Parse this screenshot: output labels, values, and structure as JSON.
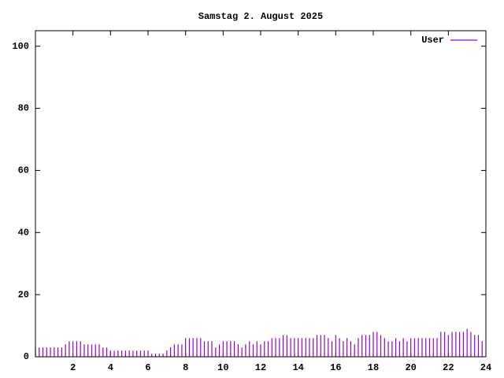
{
  "chart_data": {
    "type": "impulses",
    "title": "Samstag 2. August 2025",
    "x": [
      0,
      0.2,
      0.4,
      0.6,
      0.8,
      1,
      1.2,
      1.4,
      1.6,
      1.8,
      2,
      2.2,
      2.4,
      2.6,
      2.8,
      3,
      3.2,
      3.4,
      3.6,
      3.8,
      4,
      4.2,
      4.4,
      4.6,
      4.8,
      5,
      5.2,
      5.4,
      5.6,
      5.8,
      6,
      6.2,
      6.4,
      6.6,
      6.8,
      7,
      7.2,
      7.4,
      7.6,
      7.8,
      8,
      8.2,
      8.4,
      8.6,
      8.8,
      9,
      9.2,
      9.4,
      9.6,
      9.8,
      10,
      10.2,
      10.4,
      10.6,
      10.8,
      11,
      11.2,
      11.4,
      11.6,
      11.8,
      12,
      12.2,
      12.4,
      12.6,
      12.8,
      13,
      13.2,
      13.4,
      13.6,
      13.8,
      14,
      14.2,
      14.4,
      14.6,
      14.8,
      15,
      15.2,
      15.4,
      15.6,
      15.8,
      16,
      16.2,
      16.4,
      16.6,
      16.8,
      17,
      17.2,
      17.4,
      17.6,
      17.8,
      18,
      18.2,
      18.4,
      18.6,
      18.8,
      19,
      19.2,
      19.4,
      19.6,
      19.8,
      20,
      20.2,
      20.4,
      20.6,
      20.8,
      21,
      21.2,
      21.4,
      21.6,
      21.8,
      22,
      22.2,
      22.4,
      22.6,
      22.8,
      23,
      23.2,
      23.4,
      23.6,
      23.8
    ],
    "series": [
      {
        "name": "User",
        "color": "#9400d3",
        "values": [
          3,
          3,
          3,
          3,
          3,
          3,
          3,
          3,
          4,
          5,
          5,
          5,
          5,
          4,
          4,
          4,
          4,
          4,
          3,
          3,
          2,
          2,
          2,
          2,
          2,
          2,
          2,
          2,
          2,
          2,
          2,
          1,
          1,
          1,
          1,
          2,
          3,
          4,
          4,
          4,
          6,
          6,
          6,
          6,
          6,
          5,
          5,
          5,
          3,
          4,
          5,
          5,
          5,
          5,
          4,
          3,
          4,
          5,
          4,
          5,
          4,
          5,
          5,
          6,
          6,
          6,
          7,
          7,
          6,
          6,
          6,
          6,
          6,
          6,
          6,
          7,
          7,
          7,
          6,
          5,
          7,
          6,
          5,
          6,
          5,
          4,
          6,
          7,
          7,
          7,
          8,
          8,
          7,
          6,
          5,
          5,
          6,
          5,
          6,
          5,
          6,
          6,
          6,
          6,
          6,
          6,
          6,
          6,
          8,
          8,
          7,
          8,
          8,
          8,
          8,
          9,
          8,
          7,
          7,
          5
        ]
      }
    ],
    "xlim": [
      0,
      24
    ],
    "xticks": [
      2,
      4,
      6,
      8,
      10,
      12,
      14,
      16,
      18,
      20,
      22,
      24
    ],
    "ylim": [
      0,
      105
    ],
    "yticks": [
      0,
      20,
      40,
      60,
      80,
      100
    ],
    "legend": "upper right"
  }
}
